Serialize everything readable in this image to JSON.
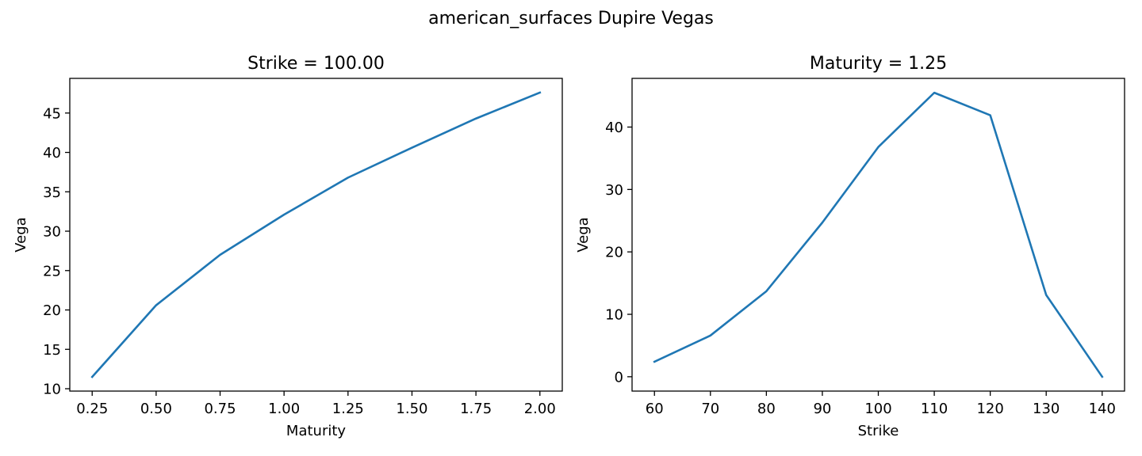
{
  "figure": {
    "suptitle": "american_surfaces Dupire Vegas"
  },
  "chart_data": [
    {
      "type": "line",
      "title": "Strike = 100.00",
      "xlabel": "Maturity",
      "ylabel": "Vega",
      "xlim": [
        0.1625,
        2.0875
      ],
      "ylim": [
        9.7,
        49.4
      ],
      "xticks": [
        0.25,
        0.5,
        0.75,
        1.0,
        1.25,
        1.5,
        1.75,
        2.0
      ],
      "xtick_labels": [
        "0.25",
        "0.50",
        "0.75",
        "1.00",
        "1.25",
        "1.50",
        "1.75",
        "2.00"
      ],
      "yticks": [
        10,
        15,
        20,
        25,
        30,
        35,
        40,
        45
      ],
      "ytick_labels": [
        "10",
        "15",
        "20",
        "25",
        "30",
        "35",
        "40",
        "45"
      ],
      "grid": false,
      "series": [
        {
          "color": "#1f77b4",
          "x": [
            0.25,
            0.5,
            0.75,
            1.0,
            1.25,
            1.5,
            1.75,
            2.0
          ],
          "y": [
            11.5,
            20.6,
            27.0,
            32.1,
            36.8,
            40.6,
            44.3,
            47.6
          ]
        }
      ]
    },
    {
      "type": "line",
      "title": "Maturity = 1.25",
      "xlabel": "Strike",
      "ylabel": "Vega",
      "xlim": [
        56,
        144
      ],
      "ylim": [
        -2.3,
        47.8
      ],
      "xticks": [
        60,
        70,
        80,
        90,
        100,
        110,
        120,
        130,
        140
      ],
      "xtick_labels": [
        "60",
        "70",
        "80",
        "90",
        "100",
        "110",
        "120",
        "130",
        "140"
      ],
      "yticks": [
        0,
        10,
        20,
        30,
        40
      ],
      "ytick_labels": [
        "0",
        "10",
        "20",
        "30",
        "40"
      ],
      "grid": false,
      "series": [
        {
          "color": "#1f77b4",
          "x": [
            60,
            70,
            80,
            90,
            100,
            110,
            120,
            130,
            140
          ],
          "y": [
            2.4,
            6.6,
            13.7,
            24.7,
            36.8,
            45.5,
            41.9,
            13.1,
            0.0
          ]
        }
      ]
    }
  ]
}
